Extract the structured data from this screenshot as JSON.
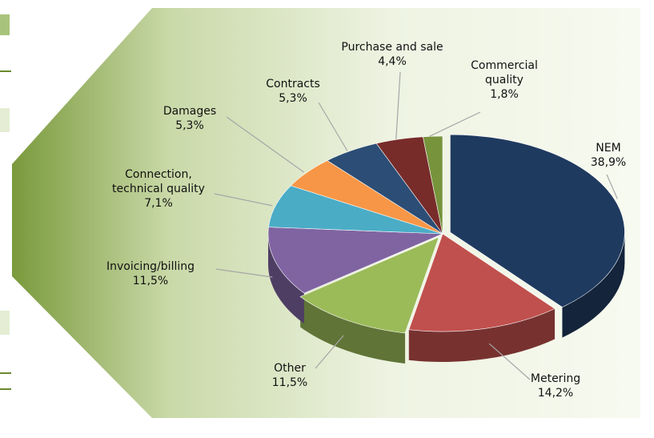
{
  "chart_data": {
    "type": "pie",
    "categories": [
      "NEM",
      "Metering",
      "Other",
      "Invoicing/billing",
      "Connection, technical quality",
      "Damages",
      "Contracts",
      "Purchase and sale",
      "Commercial quality"
    ],
    "values": [
      38.9,
      14.2,
      11.5,
      11.5,
      7.1,
      5.3,
      5.3,
      4.4,
      1.8
    ],
    "value_labels": [
      "38,9%",
      "14,2%",
      "11,5%",
      "11,5%",
      "7,1%",
      "5,3%",
      "5,3%",
      "4,4%",
      "1,8%"
    ],
    "colors": [
      "#1f3a5f",
      "#c0504d",
      "#9bbb59",
      "#8064a2",
      "#4bacc6",
      "#f79646",
      "#2c4d75",
      "#772c2a",
      "#77933c"
    ]
  }
}
